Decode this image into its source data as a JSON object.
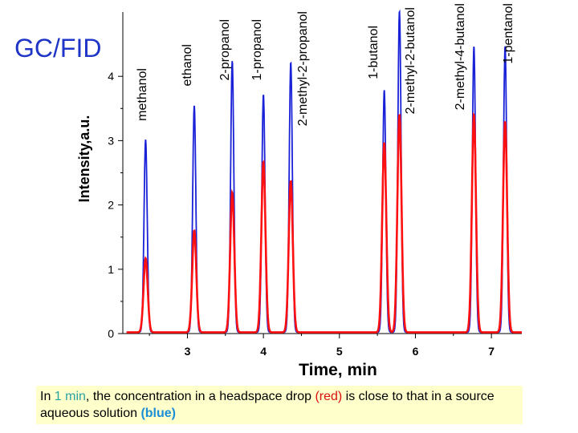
{
  "page_label": "GC/FID",
  "caption": {
    "p1": "In ",
    "hl1": "1 min",
    "p2": ", the concentration in a headspace drop ",
    "hl2": "(red)",
    "p3": " is close  to that in a source aqueous solution ",
    "hl3": "(blue)"
  },
  "chart_data": {
    "type": "line",
    "xlabel": "Time, min",
    "ylabel": "Intensity,a.u.",
    "xlim": [
      2.15,
      7.4
    ],
    "ylim": [
      0,
      5
    ],
    "xticks": [
      3,
      4,
      5,
      6,
      7
    ],
    "yticks": [
      0,
      1,
      2,
      3,
      4
    ],
    "grid": false,
    "colors": {
      "blue": "#1a22d8",
      "red": "#ff1010",
      "axis": "#000000"
    },
    "peaks": [
      {
        "name": "methanol",
        "rt": 2.45,
        "blue": 3.0,
        "red": 1.15
      },
      {
        "name": "ethanol",
        "rt": 3.09,
        "blue": 3.53,
        "red": 1.58
      },
      {
        "name": "2-propanol",
        "rt": 3.59,
        "blue": 4.22,
        "red": 2.17
      },
      {
        "name": "1-propanol",
        "rt": 4.0,
        "blue": 3.7,
        "red": 2.65
      },
      {
        "name": "2-methyl-2-propanol",
        "rt": 4.36,
        "blue": 4.2,
        "red": 2.35
      },
      {
        "name": "1-butanol",
        "rt": 5.59,
        "blue": 3.77,
        "red": 2.95
      },
      {
        "name": "2-methyl-2-butanol",
        "rt": 5.79,
        "blue": 5.0,
        "red": 3.38
      },
      {
        "name": "2-methyl-4-butanol",
        "rt": 6.77,
        "blue": 4.45,
        "red": 3.38
      },
      {
        "name": "1-pentanol",
        "rt": 7.18,
        "blue": 4.45,
        "red": 3.28
      }
    ]
  }
}
